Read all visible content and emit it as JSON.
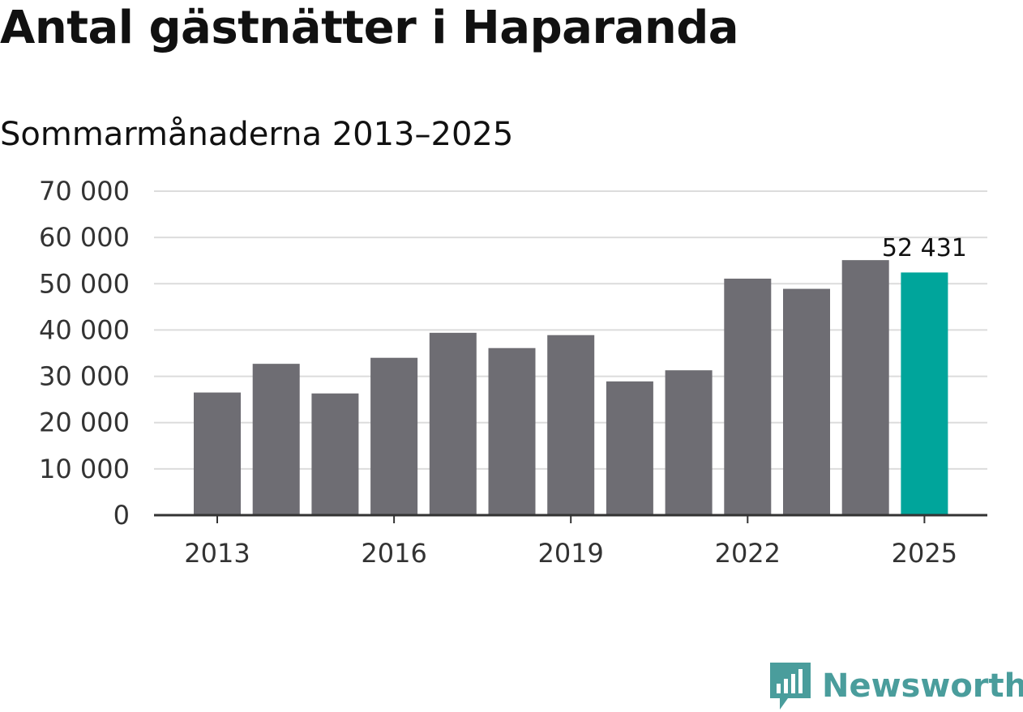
{
  "title": "Antal gästnätter i Haparanda",
  "subtitle": "Sommarmånaderna 2013–2025",
  "brand": {
    "name": "Newsworthy",
    "logo_icon": "newsworthy-logo-icon",
    "color": "#4a9d9c"
  },
  "chart_data": {
    "type": "bar",
    "categories": [
      "2013",
      "2014",
      "2015",
      "2016",
      "2017",
      "2018",
      "2019",
      "2020",
      "2021",
      "2022",
      "2023",
      "2024",
      "2025"
    ],
    "series": [
      {
        "values": [
          26500,
          32700,
          26300,
          34000,
          39400,
          36100,
          38900,
          28900,
          31300,
          51100,
          48900,
          55100,
          52431
        ]
      }
    ],
    "xticks": [
      "2013",
      "2016",
      "2019",
      "2022",
      "2025"
    ],
    "yticks": [
      0,
      10000,
      20000,
      30000,
      40000,
      50000,
      60000,
      70000
    ],
    "ytick_labels": [
      "0",
      "10 000",
      "20 000",
      "30 000",
      "40 000",
      "50 000",
      "60 000",
      "70 000"
    ],
    "ylim": [
      0,
      70000
    ],
    "grid": true,
    "bar_color": "#6e6d73",
    "highlight_color": "#00a59b",
    "highlight_category": "2025",
    "annotation": {
      "category": "2025",
      "text": "52 431"
    }
  }
}
